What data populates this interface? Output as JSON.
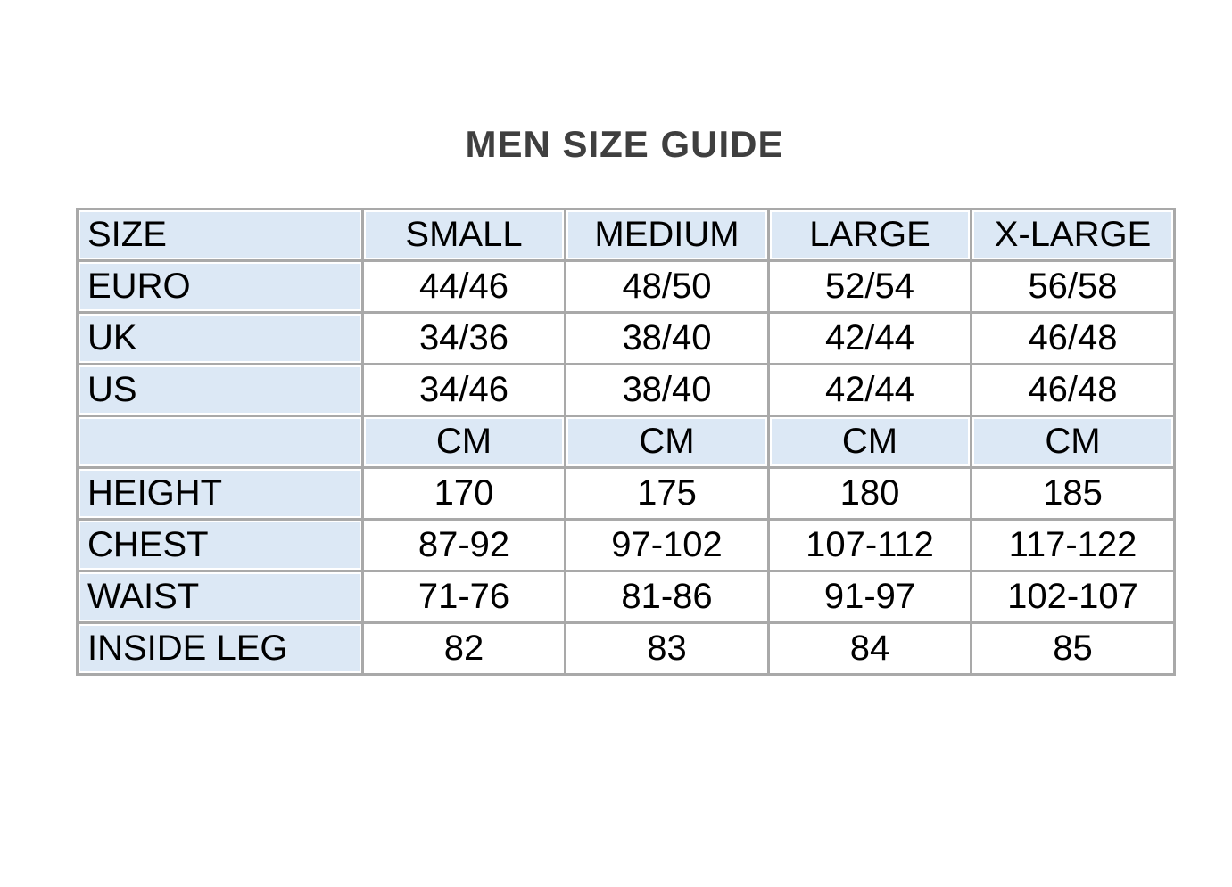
{
  "page": {
    "title": "MEN SIZE GUIDE"
  },
  "table": {
    "columns": [
      "SIZE",
      "SMALL",
      "MEDIUM",
      "LARGE",
      "X-LARGE"
    ],
    "rows": [
      {
        "label": "EURO",
        "values": [
          "44/46",
          "48/50",
          "52/54",
          "56/58"
        ]
      },
      {
        "label": "UK",
        "values": [
          "34/36",
          "38/40",
          "42/44",
          "46/48"
        ]
      },
      {
        "label": "US",
        "values": [
          "34/46",
          "38/40",
          "42/44",
          "46/48"
        ]
      },
      {
        "label": "",
        "values": [
          "CM",
          "CM",
          "CM",
          "CM"
        ]
      },
      {
        "label": "HEIGHT",
        "values": [
          "170",
          "175",
          "180",
          "185"
        ]
      },
      {
        "label": "CHEST",
        "values": [
          "87-92",
          "97-102",
          "107-112",
          "117-122"
        ]
      },
      {
        "label": "WAIST",
        "values": [
          "71-76",
          "81-86",
          "91-97",
          "102-107"
        ]
      },
      {
        "label": "INSIDE LEG",
        "values": [
          "82",
          "83",
          "84",
          "85"
        ]
      }
    ],
    "unit_row_index": 3
  },
  "colors": {
    "header_cell_background": "#dce8f5",
    "grid_border": "#a9a9a9",
    "title_text": "#3f3f3f",
    "cell_text": "#000000",
    "page_background": "#ffffff"
  }
}
